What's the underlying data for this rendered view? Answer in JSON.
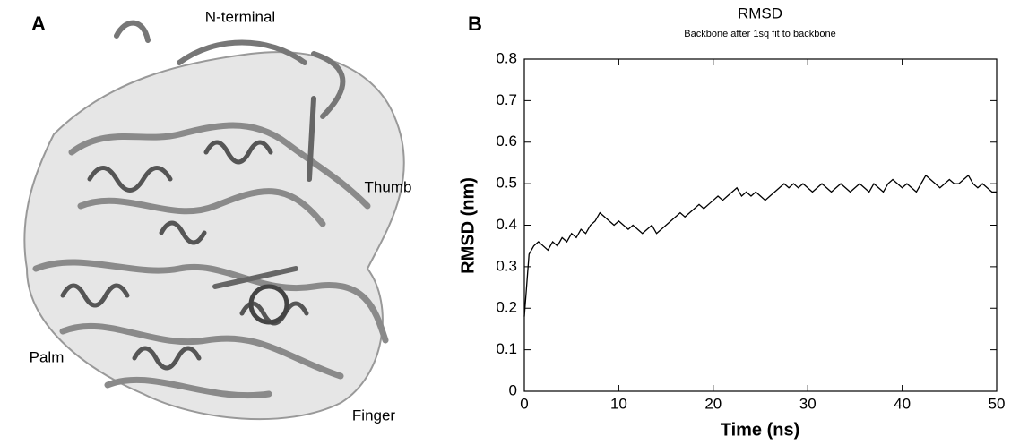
{
  "panel_a": {
    "label": "A",
    "annotations": [
      "N-terminal",
      "Thumb",
      "Palm",
      "Finger"
    ]
  },
  "chart_data": {
    "type": "line",
    "panel_label": "B",
    "title": "RMSD",
    "subtitle": "Backbone after 1sq fit to backbone",
    "x_label": "Time (ns)",
    "y_label": "RMSD (nm)",
    "x": [
      0,
      0.5,
      1,
      1.5,
      2,
      2.5,
      3,
      3.5,
      4,
      4.5,
      5,
      5.5,
      6,
      6.5,
      7,
      7.5,
      8,
      8.5,
      9,
      9.5,
      10,
      10.5,
      11,
      11.5,
      12,
      12.5,
      13,
      13.5,
      14,
      14.5,
      15,
      15.5,
      16,
      16.5,
      17,
      17.5,
      18,
      18.5,
      19,
      19.5,
      20,
      20.5,
      21,
      21.5,
      22,
      22.5,
      23,
      23.5,
      24,
      24.5,
      25,
      25.5,
      26,
      26.5,
      27,
      27.5,
      28,
      28.5,
      29,
      29.5,
      30,
      30.5,
      31,
      31.5,
      32,
      32.5,
      33,
      33.5,
      34,
      34.5,
      35,
      35.5,
      36,
      36.5,
      37,
      37.5,
      38,
      38.5,
      39,
      39.5,
      40,
      40.5,
      41,
      41.5,
      42,
      42.5,
      43,
      43.5,
      44,
      44.5,
      45,
      45.5,
      46,
      46.5,
      47,
      47.5,
      48,
      48.5,
      49,
      49.5,
      50
    ],
    "series": [
      {
        "color": "#000000",
        "values": [
          0.18,
          0.33,
          0.35,
          0.36,
          0.35,
          0.34,
          0.36,
          0.35,
          0.37,
          0.36,
          0.38,
          0.37,
          0.39,
          0.38,
          0.4,
          0.41,
          0.43,
          0.42,
          0.41,
          0.4,
          0.41,
          0.4,
          0.39,
          0.4,
          0.39,
          0.38,
          0.39,
          0.4,
          0.38,
          0.39,
          0.4,
          0.41,
          0.42,
          0.43,
          0.42,
          0.43,
          0.44,
          0.45,
          0.44,
          0.45,
          0.46,
          0.47,
          0.46,
          0.47,
          0.48,
          0.49,
          0.47,
          0.48,
          0.47,
          0.48,
          0.47,
          0.46,
          0.47,
          0.48,
          0.49,
          0.5,
          0.49,
          0.5,
          0.49,
          0.5,
          0.49,
          0.48,
          0.49,
          0.5,
          0.49,
          0.48,
          0.49,
          0.5,
          0.49,
          0.48,
          0.49,
          0.5,
          0.49,
          0.48,
          0.5,
          0.49,
          0.48,
          0.5,
          0.51,
          0.5,
          0.49,
          0.5,
          0.49,
          0.48,
          0.5,
          0.52,
          0.51,
          0.5,
          0.49,
          0.5,
          0.51,
          0.5,
          0.5,
          0.51,
          0.52,
          0.5,
          0.49,
          0.5,
          0.49,
          0.48,
          0.48
        ]
      }
    ],
    "xlim": [
      0,
      50
    ],
    "ylim": [
      0,
      0.8
    ],
    "xticks": [
      0,
      10,
      20,
      30,
      40,
      50
    ],
    "yticks": [
      0,
      0.1,
      0.2,
      0.3,
      0.4,
      0.5,
      0.6,
      0.7,
      0.8
    ]
  }
}
